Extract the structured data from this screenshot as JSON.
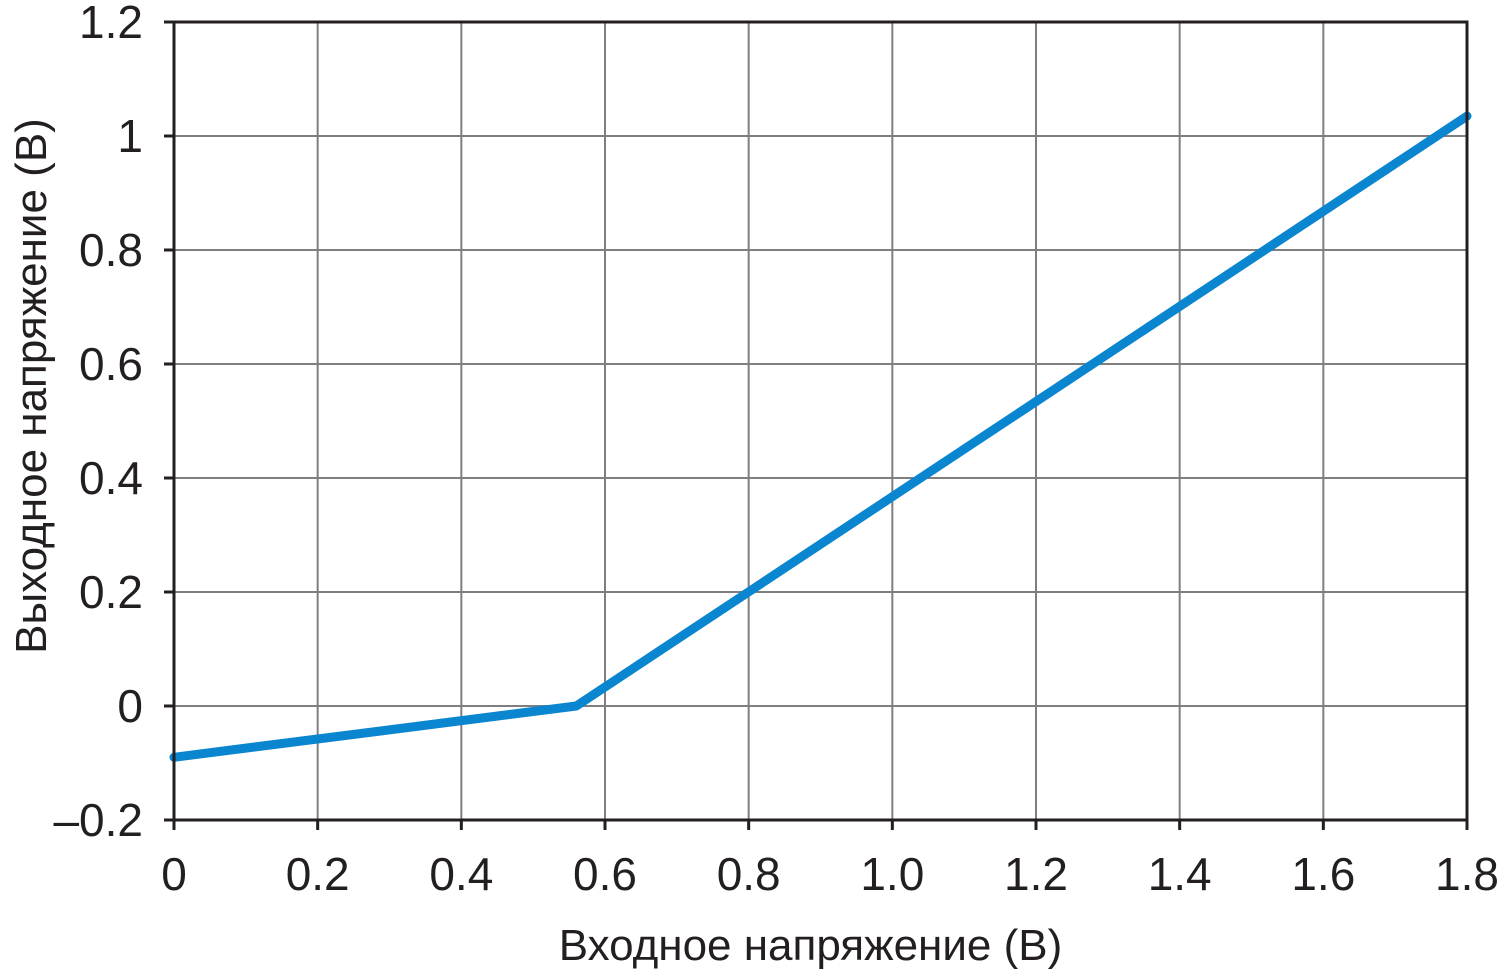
{
  "chart_data": {
    "type": "line",
    "title": "",
    "xlabel": "Входное напряжение (В)",
    "ylabel": "Выходное напряжение (В)",
    "xlim": [
      0,
      1.8
    ],
    "ylim": [
      -0.2,
      1.2
    ],
    "x_ticks": [
      0,
      0.2,
      0.4,
      0.6,
      0.8,
      1.0,
      1.2,
      1.4,
      1.6,
      1.8
    ],
    "x_tick_labels": [
      "0",
      "0.2",
      "0.4",
      "0.6",
      "0.8",
      "1.0",
      "1.2",
      "1.4",
      "1.6",
      "1.8"
    ],
    "y_ticks": [
      -0.2,
      0,
      0.2,
      0.4,
      0.6,
      0.8,
      1.0,
      1.2
    ],
    "y_tick_labels": [
      "–0.2",
      "0",
      "0.2",
      "0.4",
      "0.6",
      "0.8",
      "1",
      "1.2"
    ],
    "grid": true,
    "series": [
      {
        "color": "#0a85cf",
        "x": [
          0,
          0.56,
          1.8
        ],
        "y": [
          -0.09,
          0,
          1.035
        ]
      }
    ]
  }
}
